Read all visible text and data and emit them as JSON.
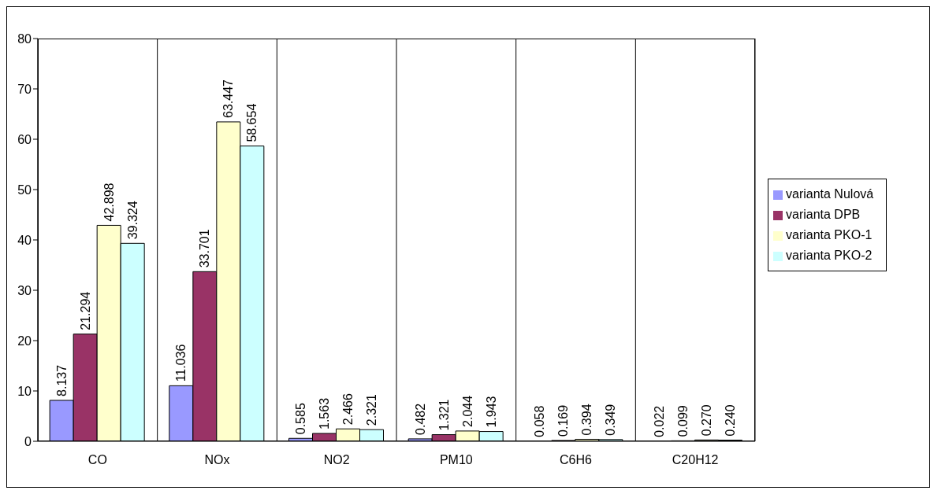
{
  "chart_data": {
    "type": "bar",
    "categories": [
      "CO",
      "NOx",
      "NO2",
      "PM10",
      "C6H6",
      "C20H12"
    ],
    "series": [
      {
        "name": "varianta Nulová",
        "color": "#9999ff",
        "values": [
          8.137,
          11.036,
          0.585,
          0.482,
          0.058,
          0.022
        ],
        "value_labels": [
          "8.137",
          "11.036",
          "0.585",
          "0.482",
          "0.058",
          "0.022"
        ]
      },
      {
        "name": "varianta DPB",
        "color": "#993366",
        "values": [
          21.294,
          33.701,
          1.563,
          1.321,
          0.169,
          0.099
        ],
        "value_labels": [
          "21.294",
          "33.701",
          "1.563",
          "1.321",
          "0.169",
          "0.099"
        ]
      },
      {
        "name": "varianta PKO-1",
        "color": "#ffffcc",
        "values": [
          42.898,
          63.447,
          2.466,
          2.044,
          0.394,
          0.27
        ],
        "value_labels": [
          "42.898",
          "63.447",
          "2.466",
          "2.044",
          "0.394",
          "0.270"
        ]
      },
      {
        "name": "varianta PKO-2",
        "color": "#ccffff",
        "values": [
          39.324,
          58.654,
          2.321,
          1.943,
          0.349,
          0.24
        ],
        "value_labels": [
          "39.324",
          "58.654",
          "2.321",
          "1.943",
          "0.349",
          "0.240"
        ]
      }
    ],
    "ylim": [
      0,
      80
    ],
    "yticks": [
      0,
      10,
      20,
      30,
      40,
      50,
      60,
      70,
      80
    ],
    "grid": "x",
    "legend": "right"
  }
}
